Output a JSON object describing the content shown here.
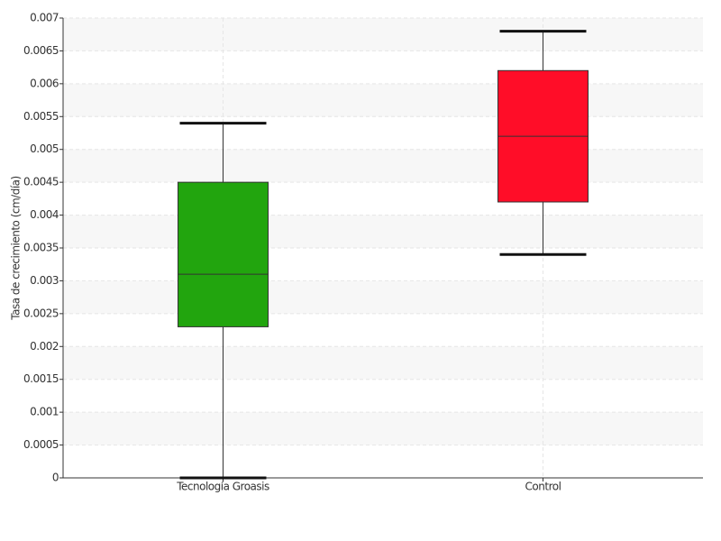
{
  "chart_data": {
    "type": "box",
    "y_label": "Tasa de crecimiento (cm/día)",
    "categories": [
      "Tecnología Groasis",
      "Control"
    ],
    "boxes": [
      {
        "min": 0,
        "q1": 0.0023,
        "median": 0.0031,
        "q3": 0.0045,
        "max": 0.0054,
        "color": "#22a50e"
      },
      {
        "min": 0.0034,
        "q1": 0.0042,
        "median": 0.0052,
        "q3": 0.0062,
        "max": 0.0068,
        "color": "#ff0d28"
      }
    ],
    "ylim": [
      0,
      0.007
    ],
    "yticks": [
      0,
      0.0005,
      0.001,
      0.0015,
      0.002,
      0.0025,
      0.003,
      0.0035,
      0.004,
      0.0045,
      0.005,
      0.0055,
      0.006,
      0.0065,
      0.007
    ],
    "grid": true
  }
}
